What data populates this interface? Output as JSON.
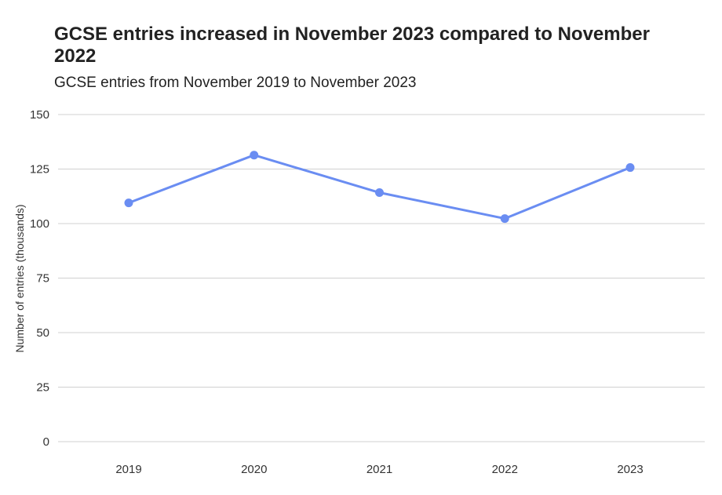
{
  "title": "GCSE entries increased in November 2023 compared to November 2022",
  "subtitle": "GCSE entries from November 2019 to November 2023",
  "chart_data": {
    "type": "line",
    "title": "GCSE entries increased in November 2023 compared to November 2022",
    "subtitle": "GCSE entries from November 2019 to November 2023",
    "xlabel": "",
    "ylabel": "Number of entries (thousands)",
    "categories": [
      "2019",
      "2020",
      "2021",
      "2022",
      "2023"
    ],
    "series": [
      {
        "values": [
          109.5,
          131.4,
          114.2,
          102.3,
          125.7
        ]
      }
    ],
    "ylim": [
      0,
      150
    ],
    "yticks": [
      0,
      25,
      50,
      75,
      100,
      125,
      150
    ],
    "grid": true,
    "legend": "none",
    "colors": {
      "line": "#6a8df2",
      "grid": "#d0d0d0"
    }
  }
}
